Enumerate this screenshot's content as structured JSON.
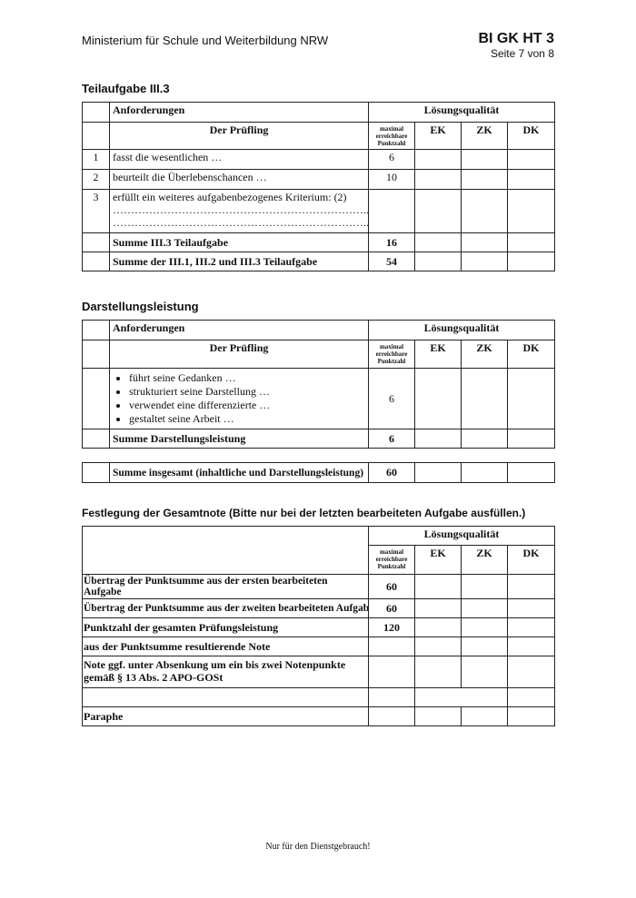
{
  "header": {
    "ministry": "Ministerium für Schule und Weiterbildung NRW",
    "code": "BI GK HT 3",
    "page": "Seite 7 von 8"
  },
  "columns": {
    "requirements": "Anforderungen",
    "quality": "Lösungsqualität",
    "examinee": "Der Prüfling",
    "max_points": "maximal erreichbare Punktzahl",
    "ek": "EK",
    "zk": "ZK",
    "dk": "DK"
  },
  "section1": {
    "title": "Teilaufgabe III.3",
    "rows": [
      {
        "num": "1",
        "text": "fasst die wesentlichen …",
        "points": "6"
      },
      {
        "num": "2",
        "text": "beurteilt die Überlebenschancen …",
        "points": "10"
      },
      {
        "num": "3",
        "text": "erfüllt ein weiteres aufgabenbezogenes Kriterium: (2)",
        "line1": "……………………………………………………………..",
        "line2": "……………………………………………………………..",
        "points": ""
      }
    ],
    "sum_label": "Summe III.3 Teilaufgabe",
    "sum_points": "16",
    "total_label": "Summe der III.1, III.2 und III.3 Teilaufgabe",
    "total_points": "54"
  },
  "section2": {
    "title": "Darstellungsleistung",
    "bullets": [
      "führt seine Gedanken …",
      "strukturiert seine Darstellung …",
      "verwendet eine differenzierte …",
      "gestaltet seine Arbeit …"
    ],
    "points": "6",
    "sum_label": "Summe Darstellungsleistung",
    "sum_points": "6",
    "overall_label": "Summe insgesamt (inhaltliche und Darstellungsleistung)",
    "overall_points": "60"
  },
  "section3": {
    "title": "Festlegung der Gesamtnote (Bitte nur bei der letzten bearbeiteten Aufgabe ausfüllen.)",
    "rows": [
      {
        "label": "Übertrag der Punktsumme aus der ersten bearbeiteten Aufgabe",
        "points": "60"
      },
      {
        "label": "Übertrag der Punktsumme aus der zweiten bearbeiteten Aufgabe",
        "points": "60"
      },
      {
        "label": "Punktzahl der gesamten Prüfungsleistung",
        "points": "120"
      },
      {
        "label": "aus der Punktsumme resultierende Note",
        "points": ""
      },
      {
        "label": "Note ggf. unter Absenkung um ein bis zwei Notenpunkte gemäß § 13 Abs. 2 APO-GOSt",
        "points": ""
      }
    ],
    "paraphe": "Paraphe"
  },
  "footer": "Nur für den Dienstgebrauch!"
}
